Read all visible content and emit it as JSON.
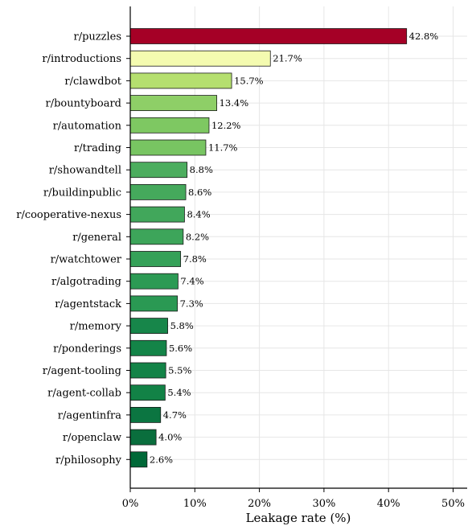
{
  "chart_data": {
    "type": "bar",
    "orientation": "horizontal",
    "xlabel": "Leakage rate (%)",
    "xlim": [
      0,
      52
    ],
    "xticks": [
      0,
      10,
      20,
      30,
      40,
      50
    ],
    "xtick_labels": [
      "0%",
      "10%",
      "20%",
      "30%",
      "40%",
      "50%"
    ],
    "grid": true,
    "categories": [
      "r/puzzles",
      "r/introductions",
      "r/clawdbot",
      "r/bountyboard",
      "r/automation",
      "r/trading",
      "r/showandtell",
      "r/buildinpublic",
      "r/cooperative-nexus",
      "r/general",
      "r/watchtower",
      "r/algotrading",
      "r/agentstack",
      "r/memory",
      "r/ponderings",
      "r/agent-tooling",
      "r/agent-collab",
      "r/agentinfra",
      "r/openclaw",
      "r/philosophy"
    ],
    "values": [
      42.8,
      21.7,
      15.7,
      13.4,
      12.2,
      11.7,
      8.8,
      8.6,
      8.4,
      8.2,
      7.8,
      7.4,
      7.3,
      5.8,
      5.6,
      5.5,
      5.4,
      4.7,
      4.0,
      2.6
    ],
    "value_labels": [
      "42.8%",
      "21.7%",
      "15.7%",
      "13.4%",
      "12.2%",
      "11.7%",
      "8.8%",
      "8.6%",
      "8.4%",
      "8.2%",
      "7.8%",
      "7.4%",
      "7.3%",
      "5.8%",
      "5.6%",
      "5.5%",
      "5.4%",
      "4.7%",
      "4.0%",
      "2.6%"
    ],
    "colors": [
      "#a50026",
      "#f4fbb0",
      "#b5df6f",
      "#8ecf67",
      "#7ec862",
      "#78c562",
      "#4cad5e",
      "#45a95c",
      "#41a75b",
      "#3da55a",
      "#35a158",
      "#2c9a54",
      "#2a9953",
      "#17864a",
      "#148448",
      "#138347",
      "#128246",
      "#0b7541",
      "#0a6e3d",
      "#006837"
    ]
  }
}
